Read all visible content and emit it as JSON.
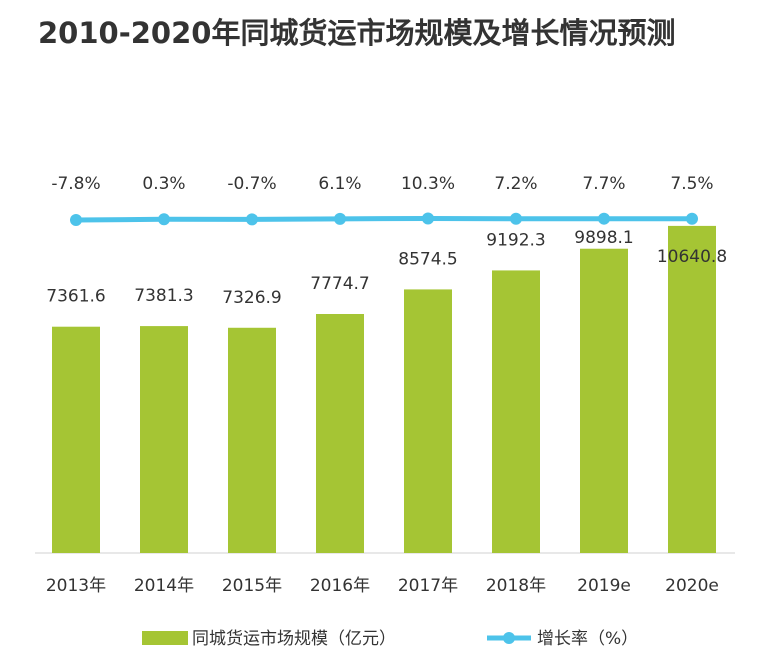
{
  "chart_data": {
    "type": "bar",
    "title": "2010-2020年同城货运市场规模及增长情况预测",
    "categories": [
      "2013年",
      "2014年",
      "2015年",
      "2016年",
      "2017年",
      "2018年",
      "2019e",
      "2020e"
    ],
    "ylim": [
      0,
      10800
    ],
    "y2lim": [
      -4000,
      -20
    ],
    "series": [
      {
        "name": "同城货运市场规模（亿元）",
        "type": "bar",
        "color": "#a5c534",
        "values": [
          7361.6,
          7381.3,
          7326.9,
          7774.7,
          8574.5,
          9192.3,
          9898.1,
          10640.8
        ]
      },
      {
        "name": "增长率（%）",
        "type": "line",
        "axis": "y2",
        "color": "#4dc3ea",
        "values": [
          -7.8,
          0.3,
          -0.7,
          6.1,
          10.3,
          7.2,
          7.7,
          7.5
        ],
        "value_labels": [
          "-7.8%",
          "0.3%",
          "-0.7%",
          "6.1%",
          "10.3%",
          "7.2%",
          "7.7%",
          "7.5%"
        ]
      }
    ]
  }
}
